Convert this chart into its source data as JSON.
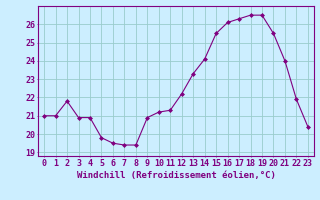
{
  "x": [
    0,
    1,
    2,
    3,
    4,
    5,
    6,
    7,
    8,
    9,
    10,
    11,
    12,
    13,
    14,
    15,
    16,
    17,
    18,
    19,
    20,
    21,
    22,
    23
  ],
  "y": [
    21.0,
    21.0,
    21.8,
    20.9,
    20.9,
    19.8,
    19.5,
    19.4,
    19.4,
    20.9,
    21.2,
    21.3,
    22.2,
    23.3,
    24.1,
    25.5,
    26.1,
    26.3,
    26.5,
    26.5,
    25.5,
    24.0,
    21.9,
    20.4
  ],
  "line_color": "#800080",
  "marker": "D",
  "marker_size": 2,
  "bg_color": "#cceeff",
  "grid_color": "#99cccc",
  "xlabel": "Windchill (Refroidissement éolien,°C)",
  "ylabel": "",
  "ylim": [
    18.8,
    27.0
  ],
  "xlim": [
    -0.5,
    23.5
  ],
  "yticks": [
    19,
    20,
    21,
    22,
    23,
    24,
    25,
    26
  ],
  "xticks": [
    0,
    1,
    2,
    3,
    4,
    5,
    6,
    7,
    8,
    9,
    10,
    11,
    12,
    13,
    14,
    15,
    16,
    17,
    18,
    19,
    20,
    21,
    22,
    23
  ],
  "xlabel_fontsize": 6.5,
  "tick_fontsize": 6.0,
  "axis_color": "#800080",
  "spine_color": "#800080"
}
